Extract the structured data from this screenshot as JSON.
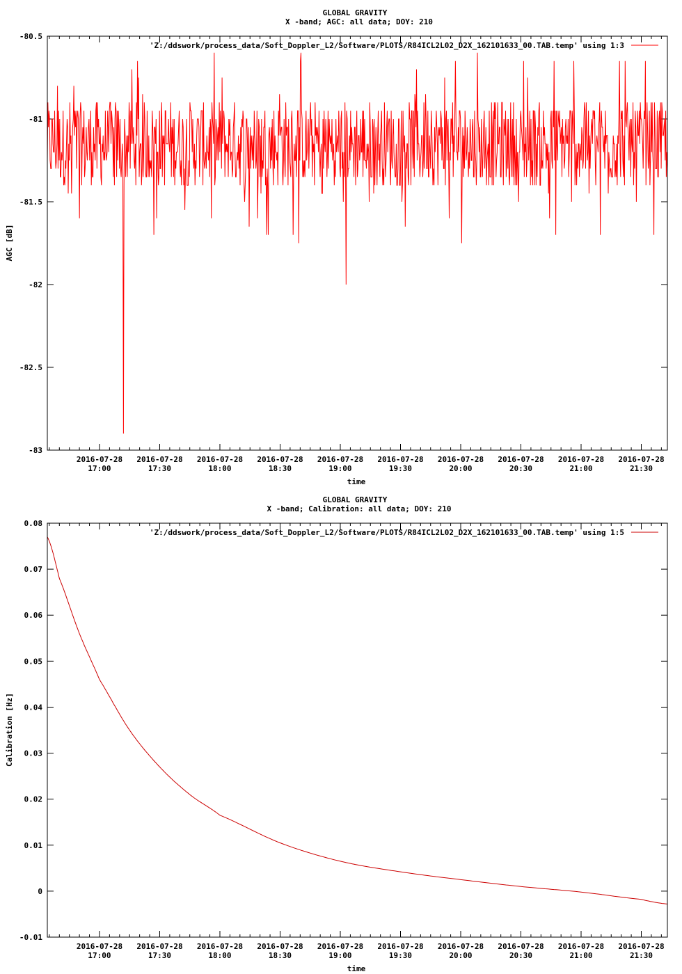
{
  "chart_data": [
    {
      "type": "line",
      "title": "GLOBAL GRAVITY",
      "subtitle": "X -band; AGC: all data; DOY: 210",
      "xlabel": "time",
      "ylabel": "AGC [dB]",
      "ylim": [
        -83,
        -80.5
      ],
      "y_ticks": [
        "-80.5",
        "-81",
        "-81.5",
        "-82",
        "-82.5",
        "-83"
      ],
      "x_tick_dates": [
        "2016-07-28",
        "2016-07-28",
        "2016-07-28",
        "2016-07-28",
        "2016-07-28",
        "2016-07-28",
        "2016-07-28",
        "2016-07-28",
        "2016-07-28",
        "2016-07-28"
      ],
      "x_tick_times": [
        "17:00",
        "17:30",
        "18:00",
        "18:30",
        "19:00",
        "19:30",
        "20:00",
        "20:30",
        "21:00",
        "21:30"
      ],
      "x_range": [
        "2016-07-28 16:34",
        "2016-07-28 21:43"
      ],
      "grid": false,
      "legend_position": "top-right",
      "line_color": "#ff0000",
      "series": [
        {
          "name": "'Z:/ddswork/process_data/Soft_Doppler_L2/Software/PLOTS/R84ICL2L02_D2X_162101633_00.TAB.temp' using 1:3",
          "description_note": "noisy AGC signal fluctuating mostly between -81.4 and -80.8 dB",
          "x": [
            "16:34",
            "16:45",
            "17:00",
            "17:10",
            "17:12",
            "17:15",
            "17:20",
            "17:30",
            "17:45",
            "18:00",
            "18:15",
            "18:30",
            "18:45",
            "19:00",
            "19:03",
            "19:15",
            "19:30",
            "19:45",
            "20:00",
            "20:15",
            "20:30",
            "20:45",
            "21:00",
            "21:15",
            "21:30",
            "21:43"
          ],
          "values": [
            -81.1,
            -81.2,
            -81.1,
            -81.2,
            -82.9,
            -81.2,
            -81.3,
            -81.1,
            -81.2,
            -81.1,
            -81.2,
            -81.2,
            -81.1,
            -81.2,
            -82.0,
            -81.1,
            -81.2,
            -81.1,
            -81.2,
            -81.1,
            -81.2,
            -81.1,
            -81.1,
            -81.0,
            -81.0,
            -81.1
          ],
          "extremes": {
            "min": -82.9,
            "min_time": "17:12",
            "max": -80.6
          }
        }
      ]
    },
    {
      "type": "line",
      "title": "GLOBAL GRAVITY",
      "subtitle": "X -band; Calibration: all data; DOY: 210",
      "xlabel": "time",
      "ylabel": "Calibration [Hz]",
      "ylim": [
        -0.01,
        0.08
      ],
      "y_ticks": [
        "0.08",
        "0.07",
        "0.06",
        "0.05",
        "0.04",
        "0.03",
        "0.02",
        "0.01",
        "0",
        "-0.01"
      ],
      "x_tick_dates": [
        "2016-07-28",
        "2016-07-28",
        "2016-07-28",
        "2016-07-28",
        "2016-07-28",
        "2016-07-28",
        "2016-07-28",
        "2016-07-28",
        "2016-07-28",
        "2016-07-28"
      ],
      "x_tick_times": [
        "17:00",
        "17:30",
        "18:00",
        "18:30",
        "19:00",
        "19:30",
        "20:00",
        "20:30",
        "21:00",
        "21:30"
      ],
      "x_range": [
        "2016-07-28 16:34",
        "2016-07-28 21:43"
      ],
      "grid": false,
      "legend_position": "top-right",
      "line_color": "#cc0000",
      "series": [
        {
          "name": "'Z:/ddswork/process_data/Soft_Doppler_L2/Software/PLOTS/R84ICL2L02_D2X_162101633_00.TAB.temp' using 1:5",
          "x": [
            "16:34",
            "16:40",
            "16:50",
            "17:00",
            "17:15",
            "17:30",
            "17:45",
            "18:00",
            "18:30",
            "19:00",
            "19:30",
            "20:00",
            "20:30",
            "21:00",
            "21:30",
            "21:43"
          ],
          "values": [
            0.077,
            0.068,
            0.056,
            0.046,
            0.035,
            0.027,
            0.021,
            0.0165,
            0.0105,
            0.0065,
            0.0042,
            0.0025,
            0.001,
            -0.0002,
            -0.0018,
            -0.0028
          ]
        }
      ]
    }
  ]
}
